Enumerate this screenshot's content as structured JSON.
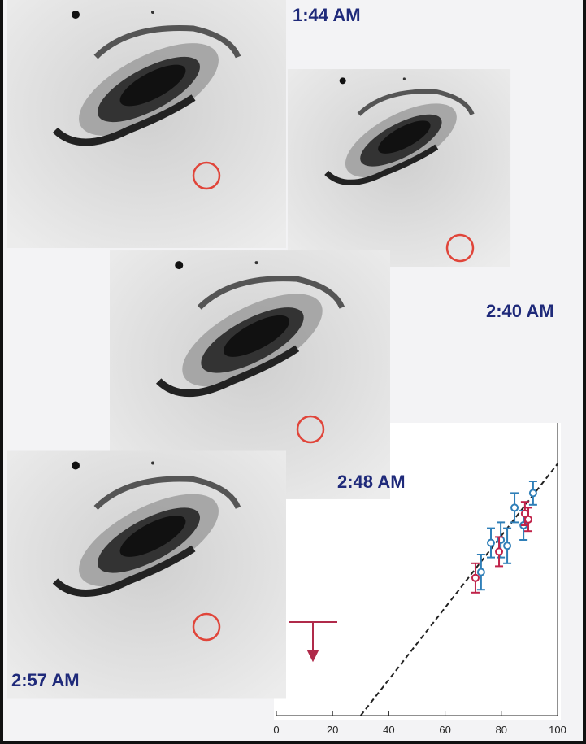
{
  "panels": [
    {
      "label": "1:44 AM"
    },
    {
      "label": "2:40 AM"
    },
    {
      "label": "2:48 AM"
    },
    {
      "label": "2:57 AM"
    }
  ],
  "chart_data": {
    "type": "scatter",
    "xlim": [
      0,
      100
    ],
    "xticks": [
      0,
      20,
      40,
      60,
      80,
      100
    ],
    "ylim": [
      0,
      100
    ],
    "series": [
      {
        "color": "#2f7fb8",
        "x": [
          72.8,
          76.3,
          79.8,
          82.1,
          84.7,
          87.9,
          91.3
        ],
        "y": [
          49,
          59,
          60,
          58,
          71,
          65,
          76
        ],
        "error": [
          6,
          5,
          6,
          6,
          5,
          5,
          4
        ]
      },
      {
        "color": "#c0234a",
        "x": [
          70.8,
          79.2,
          88.4,
          89.6
        ],
        "y": [
          47,
          56,
          69,
          67
        ],
        "error": [
          5,
          5,
          4,
          4
        ]
      }
    ],
    "reference_line": {
      "x": [
        30,
        100
      ],
      "y": [
        0,
        86
      ]
    }
  }
}
